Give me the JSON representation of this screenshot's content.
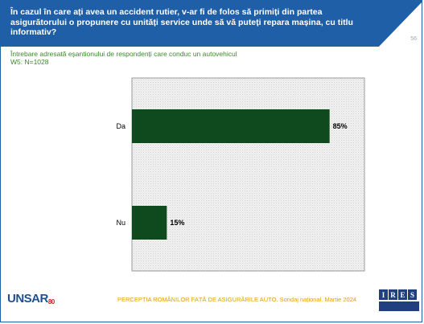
{
  "header": {
    "title": "În cazul în care ați avea un accident rutier, v-ar fi de folos să primiți din partea asigurătorului o propunere cu unități service unde să vă puteți repara mașina, cu titlu informativ?",
    "page_number": "56"
  },
  "subtitle": {
    "line1": "Întrebare adresată eșantionului de respondenți care conduc un autovehicul",
    "line2": "W5: N=1028"
  },
  "chart_data": {
    "type": "bar",
    "orientation": "horizontal",
    "categories": [
      "Da",
      "Nu"
    ],
    "values": [
      85,
      15
    ],
    "value_labels": [
      "85%",
      "15%"
    ],
    "xlim": [
      0,
      100
    ],
    "title": "",
    "xlabel": "",
    "ylabel": "",
    "bar_color": "#0f4a1f",
    "plot_background": "patterned-grey"
  },
  "footer": {
    "logo_left": "UNSAR",
    "logo_left_suffix": "80",
    "text": "PERCEPȚIA ROMÂNILOR FAȚĂ DE ASIGURĂRILE AUTO. Sondaj național. Martie 2024",
    "logo_right_letters": [
      "I",
      "R",
      "E",
      "S"
    ]
  },
  "colors": {
    "header_blue": "#1f5fa8",
    "footer_text": "#e0a000",
    "subtitle_green": "#3a8a2a"
  }
}
